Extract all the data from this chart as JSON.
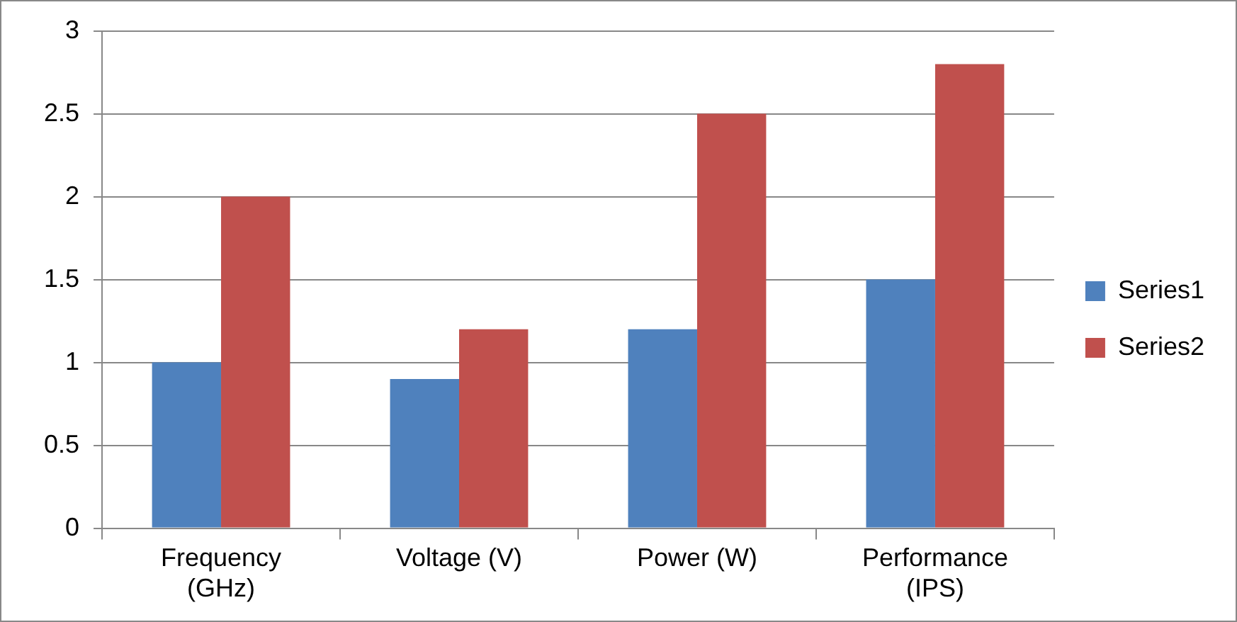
{
  "chart_data": {
    "type": "bar",
    "categories": [
      "Frequency (GHz)",
      "Voltage (V)",
      "Power (W)",
      "Performance (IPS)"
    ],
    "series": [
      {
        "name": "Series1",
        "color": "#4f81bd",
        "values": [
          1,
          0.9,
          1.2,
          1.5
        ]
      },
      {
        "name": "Series2",
        "color": "#c0504d",
        "values": [
          2,
          1.2,
          2.5,
          2.8
        ]
      }
    ],
    "ylim": [
      0,
      3
    ],
    "yticks": [
      0,
      0.5,
      1,
      1.5,
      2,
      2.5,
      3
    ],
    "grid": "y",
    "legend": "right"
  }
}
